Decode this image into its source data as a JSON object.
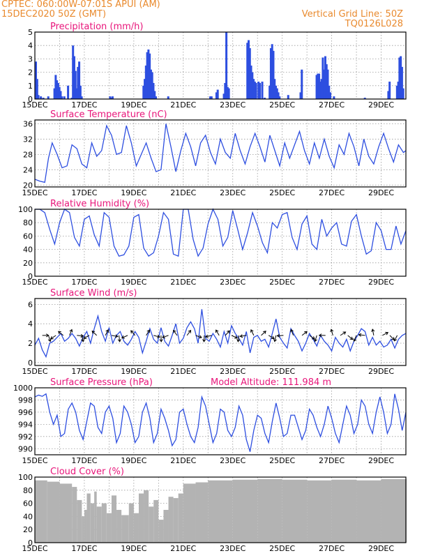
{
  "header": {
    "line1": "CPTEC:   060:00W-07:01S   APUI (AM)",
    "line2": "15DEC2020 50Z (GMT)",
    "grid_note": "Vertical Grid Line: 50Z",
    "run_id": "TQ0126L028"
  },
  "colors": {
    "header": "#e98a2e",
    "title": "#e8157a",
    "series": "#2d4ee0",
    "cloud": "#b3b3b3"
  },
  "chart_data": [
    {
      "type": "bar",
      "title": "Precipitation (mm/h)",
      "ylim": [
        0,
        5
      ],
      "yticks": [
        0,
        1,
        2,
        3,
        4,
        5
      ],
      "xlim": [
        15,
        30
      ],
      "xticks": [
        "15DEC",
        "17DEC",
        "19DEC",
        "21DEC",
        "23DEC",
        "25DEC",
        "27DEC",
        "29DEC"
      ],
      "x": [
        15.0,
        15.05,
        15.1,
        15.2,
        15.3,
        15.5,
        15.75,
        15.8,
        15.85,
        15.9,
        15.95,
        16.0,
        16.05,
        16.15,
        16.3,
        16.45,
        16.5,
        16.55,
        16.6,
        16.65,
        16.7,
        16.75,
        16.8,
        16.85,
        18.0,
        18.05,
        18.1,
        19.35,
        19.4,
        19.45,
        19.5,
        19.55,
        19.6,
        19.65,
        19.7,
        19.75,
        19.8,
        19.85,
        20.35,
        22.05,
        22.1,
        22.3,
        22.35,
        22.6,
        22.65,
        22.7,
        22.75,
        22.8,
        23.55,
        23.6,
        23.65,
        23.7,
        23.75,
        23.8,
        23.85,
        23.9,
        24.0,
        24.05,
        24.15,
        24.25,
        24.45,
        24.5,
        24.55,
        24.6,
        24.65,
        24.7,
        24.75,
        24.8,
        24.85,
        25.2,
        25.7,
        25.75,
        26.35,
        26.4,
        26.45,
        26.5,
        26.55,
        26.6,
        26.65,
        26.7,
        26.75,
        26.8,
        26.85,
        26.9,
        27.05,
        28.3,
        29.25,
        29.3,
        29.6,
        29.65,
        29.7,
        29.75,
        29.8,
        29.85
      ],
      "values": [
        2.8,
        1.5,
        0.3,
        0.2,
        0.1,
        0.2,
        0.8,
        1.8,
        1.4,
        1.2,
        0.9,
        0.6,
        0.2,
        0.2,
        1.0,
        0.1,
        4.0,
        3.2,
        2.1,
        0.8,
        2.4,
        2.8,
        1.0,
        0.2,
        0.2,
        0.1,
        0.2,
        1.0,
        1.5,
        2.5,
        3.5,
        3.7,
        3.4,
        2.2,
        2.0,
        1.2,
        0.6,
        0.2,
        0.2,
        0.2,
        0.2,
        0.5,
        0.7,
        0.4,
        1.2,
        5.0,
        0.9,
        0.8,
        4.2,
        4.4,
        3.8,
        2.5,
        2.0,
        1.5,
        1.3,
        1.2,
        1.3,
        1.2,
        1.3,
        0.1,
        1.0,
        3.8,
        4.1,
        3.6,
        1.5,
        1.0,
        0.8,
        0.5,
        0.2,
        0.3,
        0.5,
        2.2,
        1.8,
        1.9,
        1.9,
        1.3,
        1.5,
        3.1,
        2.2,
        3.2,
        2.6,
        2.2,
        1.0,
        0.5,
        0.2,
        0.1,
        0.6,
        1.3,
        1.0,
        1.3,
        3.1,
        3.2,
        2.4,
        0.8
      ]
    },
    {
      "type": "line",
      "title": "Surface Temperature (nC)",
      "ylim": [
        19.5,
        37
      ],
      "yticks": [
        20,
        24,
        28,
        32,
        36
      ],
      "xlim": [
        15,
        30
      ],
      "xticks": [
        "15DEC",
        "17DEC",
        "19DEC",
        "21DEC",
        "23DEC",
        "25DEC",
        "27DEC",
        "29DEC"
      ],
      "x": [
        15.0,
        15.2,
        15.4,
        15.55,
        15.7,
        15.9,
        16.1,
        16.3,
        16.5,
        16.7,
        16.9,
        17.1,
        17.3,
        17.5,
        17.7,
        17.9,
        18.1,
        18.3,
        18.5,
        18.7,
        18.9,
        19.1,
        19.3,
        19.5,
        19.7,
        19.9,
        20.1,
        20.3,
        20.5,
        20.7,
        20.9,
        21.1,
        21.3,
        21.5,
        21.7,
        21.9,
        22.1,
        22.3,
        22.5,
        22.7,
        22.9,
        23.1,
        23.3,
        23.5,
        23.7,
        23.9,
        24.1,
        24.3,
        24.5,
        24.7,
        24.9,
        25.1,
        25.3,
        25.5,
        25.7,
        25.9,
        26.1,
        26.3,
        26.5,
        26.7,
        26.9,
        27.1,
        27.3,
        27.5,
        27.7,
        27.9,
        28.1,
        28.3,
        28.5,
        28.7,
        28.9,
        29.1,
        29.3,
        29.5,
        29.7,
        29.9,
        30.0
      ],
      "values": [
        21.5,
        21.0,
        20.7,
        27.0,
        31.0,
        28.0,
        24.5,
        25.0,
        30.5,
        29.5,
        25.5,
        24.5,
        31.0,
        27.5,
        29.0,
        35.5,
        33.0,
        28.0,
        28.5,
        35.5,
        31.0,
        25.0,
        28.0,
        31.0,
        27.0,
        23.5,
        24.0,
        36.0,
        30.0,
        23.5,
        29.0,
        33.5,
        30.0,
        25.0,
        31.0,
        33.0,
        28.5,
        25.5,
        32.0,
        28.5,
        27.0,
        33.5,
        29.0,
        25.5,
        30.0,
        33.5,
        30.0,
        26.0,
        33.0,
        29.0,
        25.0,
        31.0,
        27.0,
        30.5,
        34.0,
        29.0,
        25.5,
        31.0,
        27.0,
        32.0,
        27.5,
        24.5,
        30.5,
        28.0,
        33.5,
        30.0,
        25.0,
        32.0,
        27.5,
        25.5,
        30.0,
        33.5,
        29.5,
        26.0,
        30.5,
        28.5,
        29.0
      ]
    },
    {
      "type": "line",
      "title": "Relative Humidity (%)",
      "ylim": [
        0,
        100
      ],
      "yticks": [
        0,
        20,
        40,
        60,
        80,
        100
      ],
      "xlim": [
        15,
        30
      ],
      "xticks": [
        "15DEC",
        "17DEC",
        "19DEC",
        "21DEC",
        "23DEC",
        "25DEC",
        "27DEC",
        "29DEC"
      ],
      "x": [
        15.0,
        15.2,
        15.4,
        15.6,
        15.8,
        16.0,
        16.2,
        16.4,
        16.6,
        16.8,
        17.0,
        17.2,
        17.4,
        17.6,
        17.8,
        18.0,
        18.2,
        18.4,
        18.6,
        18.8,
        19.0,
        19.2,
        19.4,
        19.6,
        19.8,
        20.0,
        20.2,
        20.4,
        20.6,
        20.8,
        21.0,
        21.2,
        21.4,
        21.6,
        21.8,
        22.0,
        22.2,
        22.4,
        22.6,
        22.8,
        23.0,
        23.2,
        23.4,
        23.6,
        23.8,
        24.0,
        24.2,
        24.4,
        24.6,
        24.8,
        25.0,
        25.2,
        25.4,
        25.6,
        25.8,
        26.0,
        26.2,
        26.4,
        26.6,
        26.8,
        27.0,
        27.2,
        27.4,
        27.6,
        27.8,
        28.0,
        28.2,
        28.4,
        28.6,
        28.8,
        29.0,
        29.2,
        29.4,
        29.6,
        29.8,
        30.0
      ],
      "values": [
        100,
        100,
        95,
        70,
        48,
        80,
        100,
        95,
        58,
        45,
        85,
        90,
        62,
        45,
        95,
        88,
        45,
        30,
        32,
        45,
        88,
        92,
        42,
        30,
        35,
        60,
        95,
        85,
        33,
        30,
        100,
        100,
        55,
        30,
        42,
        78,
        100,
        85,
        45,
        58,
        98,
        70,
        40,
        65,
        95,
        75,
        50,
        35,
        80,
        72,
        92,
        95,
        58,
        40,
        78,
        90,
        48,
        40,
        85,
        60,
        72,
        80,
        48,
        45,
        82,
        92,
        60,
        33,
        38,
        80,
        68,
        40,
        40,
        75,
        48,
        68
      ]
    },
    {
      "type": "line",
      "title": "Surface Wind (m/s)",
      "ylim": [
        -0.3,
        6.6
      ],
      "yticks": [
        0,
        2,
        4,
        6
      ],
      "xlim": [
        15,
        30
      ],
      "xticks": [
        "15DEC",
        "17DEC",
        "19DEC",
        "21DEC",
        "23DEC",
        "25DEC",
        "27DEC",
        "29DEC"
      ],
      "x": [
        15.0,
        15.15,
        15.3,
        15.45,
        15.6,
        15.75,
        15.9,
        16.05,
        16.2,
        16.35,
        16.5,
        16.65,
        16.8,
        16.95,
        17.1,
        17.25,
        17.4,
        17.55,
        17.7,
        17.85,
        18.0,
        18.15,
        18.3,
        18.45,
        18.6,
        18.75,
        18.9,
        19.05,
        19.2,
        19.35,
        19.5,
        19.65,
        19.8,
        19.95,
        20.1,
        20.25,
        20.4,
        20.55,
        20.7,
        20.85,
        21.0,
        21.15,
        21.3,
        21.45,
        21.6,
        21.75,
        21.9,
        22.05,
        22.2,
        22.35,
        22.5,
        22.65,
        22.8,
        22.95,
        23.1,
        23.25,
        23.4,
        23.55,
        23.7,
        23.85,
        24.0,
        24.15,
        24.3,
        24.45,
        24.6,
        24.75,
        24.9,
        25.05,
        25.2,
        25.35,
        25.5,
        25.65,
        25.8,
        25.95,
        26.1,
        26.25,
        26.4,
        26.55,
        26.7,
        26.85,
        27.0,
        27.15,
        27.3,
        27.45,
        27.6,
        27.75,
        27.9,
        28.05,
        28.2,
        28.35,
        28.5,
        28.65,
        28.8,
        28.95,
        29.1,
        29.25,
        29.4,
        29.55,
        29.7,
        29.85,
        30.0
      ],
      "values": [
        1.8,
        2.5,
        1.3,
        0.6,
        2.0,
        2.2,
        2.6,
        3.0,
        2.2,
        2.5,
        3.0,
        2.5,
        1.7,
        2.6,
        3.2,
        2.0,
        3.5,
        4.8,
        3.2,
        2.2,
        3.6,
        2.0,
        2.8,
        3.2,
        2.2,
        1.8,
        2.4,
        3.2,
        2.6,
        1.0,
        2.2,
        3.5,
        2.4,
        2.0,
        3.6,
        2.2,
        1.7,
        2.8,
        4.0,
        2.0,
        2.5,
        3.6,
        4.2,
        3.5,
        2.0,
        5.5,
        2.5,
        2.2,
        3.0,
        2.4,
        1.6,
        3.2,
        2.0,
        3.8,
        3.0,
        2.5,
        1.8,
        3.2,
        1.0,
        2.6,
        2.8,
        2.2,
        2.4,
        1.6,
        3.0,
        4.5,
        2.6,
        2.0,
        1.5,
        3.5,
        2.8,
        2.2,
        1.2,
        2.0,
        3.0,
        2.4,
        1.7,
        2.8,
        2.2,
        1.8,
        1.2,
        2.6,
        2.0,
        1.6,
        2.4,
        1.2,
        2.2,
        2.8,
        3.5,
        3.2,
        1.8,
        2.6,
        1.8,
        2.2,
        1.6,
        1.8,
        2.4,
        1.5,
        2.4,
        2.8,
        3.0
      ]
    },
    {
      "type": "line",
      "title": "Surface Pressure (hPa)",
      "annotation": "Model Altitude: 111.984  m",
      "ylim": [
        989,
        1000
      ],
      "yticks": [
        990,
        992,
        994,
        996,
        998,
        1000
      ],
      "xlim": [
        15,
        30
      ],
      "xticks": [
        "15DEC",
        "17DEC",
        "19DEC",
        "21DEC",
        "23DEC",
        "25DEC",
        "27DEC",
        "29DEC"
      ],
      "x": [
        15.0,
        15.15,
        15.3,
        15.45,
        15.6,
        15.75,
        15.9,
        16.05,
        16.2,
        16.35,
        16.5,
        16.65,
        16.8,
        16.95,
        17.1,
        17.25,
        17.4,
        17.55,
        17.7,
        17.85,
        18.0,
        18.15,
        18.3,
        18.45,
        18.6,
        18.75,
        18.9,
        19.05,
        19.2,
        19.35,
        19.5,
        19.65,
        19.8,
        19.95,
        20.1,
        20.25,
        20.4,
        20.55,
        20.7,
        20.85,
        21.0,
        21.15,
        21.3,
        21.45,
        21.6,
        21.75,
        21.9,
        22.05,
        22.2,
        22.35,
        22.5,
        22.65,
        22.8,
        22.95,
        23.1,
        23.25,
        23.4,
        23.55,
        23.7,
        23.85,
        24.0,
        24.15,
        24.3,
        24.45,
        24.6,
        24.75,
        24.9,
        25.05,
        25.2,
        25.35,
        25.5,
        25.65,
        25.8,
        25.95,
        26.1,
        26.25,
        26.4,
        26.55,
        26.7,
        26.85,
        27.0,
        27.15,
        27.3,
        27.45,
        27.6,
        27.75,
        27.9,
        28.05,
        28.2,
        28.35,
        28.5,
        28.65,
        28.8,
        28.95,
        29.1,
        29.25,
        29.4,
        29.55,
        29.7,
        29.85,
        30.0
      ],
      "values": [
        998.5,
        998.8,
        998.6,
        999.0,
        996.0,
        994.0,
        995.5,
        992.0,
        992.5,
        996.5,
        997.5,
        996.0,
        993.0,
        991.5,
        994.5,
        997.5,
        997.0,
        993.5,
        992.5,
        996.0,
        997.0,
        995.0,
        991.0,
        992.5,
        997.0,
        996.0,
        994.0,
        991.0,
        992.0,
        996.0,
        997.5,
        995.0,
        991.0,
        992.5,
        996.5,
        995.0,
        993.0,
        990.5,
        991.5,
        996.0,
        996.5,
        994.0,
        992.0,
        991.0,
        993.5,
        998.5,
        997.0,
        994.0,
        991.0,
        992.5,
        996.5,
        996.0,
        993.0,
        992.0,
        993.5,
        997.0,
        995.5,
        991.5,
        989.5,
        993.0,
        995.5,
        995.0,
        992.5,
        991.0,
        994.5,
        997.5,
        995.0,
        992.0,
        992.5,
        995.5,
        995.5,
        993.5,
        991.5,
        993.0,
        996.5,
        995.5,
        993.5,
        992.0,
        994.0,
        997.0,
        995.0,
        992.5,
        991.0,
        994.0,
        997.0,
        995.5,
        992.5,
        994.0,
        998.0,
        997.0,
        994.0,
        992.5,
        996.0,
        998.5,
        996.0,
        992.5,
        994.0,
        999.0,
        996.5,
        993.0,
        996.0
      ],
      "wind_arrows": [
        15.3,
        15.55,
        15.85,
        16.15,
        16.4,
        16.7,
        16.9,
        17.2,
        17.5,
        17.85,
        18.1,
        18.4,
        18.75,
        19.05,
        19.5,
        19.8,
        20.1,
        20.4,
        20.75,
        21.15,
        21.5,
        21.85,
        22.15,
        22.45,
        22.7,
        22.95,
        23.25,
        23.55,
        23.85,
        24.15,
        24.45,
        24.75,
        25.05,
        25.45,
        25.8,
        26.1,
        26.4,
        26.75,
        27.05,
        27.35,
        27.65,
        28.0,
        28.35,
        28.7,
        29.05,
        29.35,
        29.65
      ]
    },
    {
      "type": "bar",
      "title": "Cloud Cover (%)",
      "ylim": [
        0,
        100
      ],
      "yticks": [
        0,
        20,
        40,
        60,
        80,
        100
      ],
      "xlim": [
        15,
        30
      ],
      "xticks": [
        "15DEC",
        "17DEC",
        "19DEC",
        "21DEC",
        "23DEC",
        "25DEC",
        "27DEC",
        "29DEC"
      ],
      "x": [
        15.0,
        15.5,
        16.0,
        16.5,
        16.7,
        16.9,
        17.0,
        17.1,
        17.25,
        17.4,
        17.5,
        17.7,
        17.9,
        18.1,
        18.3,
        18.5,
        18.8,
        19.0,
        19.2,
        19.4,
        19.6,
        19.8,
        20.0,
        20.2,
        20.4,
        20.6,
        20.8,
        21.0,
        21.5,
        22.0,
        23.0,
        24.0,
        25.0,
        26.0,
        27.0,
        28.0,
        29.0,
        30.0
      ],
      "values": [
        95,
        93,
        90,
        85,
        65,
        40,
        50,
        75,
        60,
        78,
        55,
        60,
        45,
        72,
        50,
        42,
        60,
        45,
        75,
        80,
        55,
        65,
        35,
        50,
        70,
        68,
        75,
        90,
        92,
        95,
        96,
        97,
        96,
        95,
        96,
        95,
        97,
        97
      ]
    }
  ]
}
